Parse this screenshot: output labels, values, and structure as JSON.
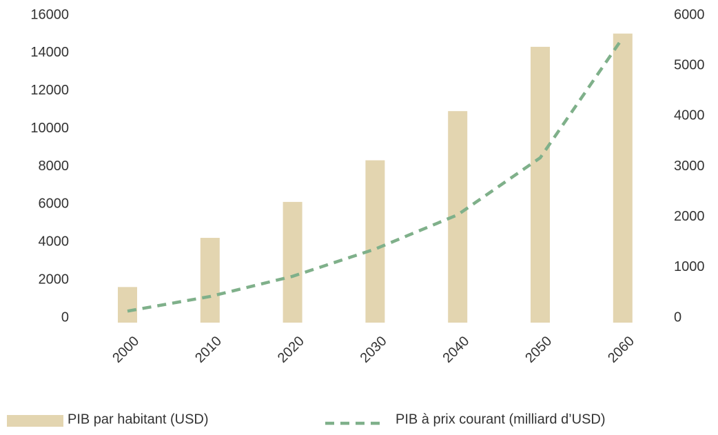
{
  "chart_data": {
    "type": "bar_line",
    "categories": [
      "2000",
      "2010",
      "2020",
      "2030",
      "2040",
      "2050",
      "2060"
    ],
    "series": [
      {
        "name": "PIB par habitant (USD)",
        "type": "bar",
        "color": "#e3d5b0",
        "values": [
          1700,
          4300,
          6200,
          8400,
          11000,
          14400,
          15100
        ]
      },
      {
        "name": "PIB à prix courant (milliard d’USD)",
        "type": "line",
        "axis": "y2",
        "color": "#7fb08a",
        "dashed": true,
        "values": [
          160,
          450,
          850,
          1390,
          2070,
          3200,
          5580
        ]
      }
    ],
    "ylim": [
      0,
      16000
    ],
    "yticks": [
      0,
      2000,
      4000,
      6000,
      8000,
      10000,
      12000,
      14000,
      16000
    ],
    "y2lim": [
      0,
      6000
    ],
    "y2ticks": [
      0,
      1000,
      2000,
      3000,
      4000,
      5000,
      6000
    ],
    "legend": "bottom"
  }
}
